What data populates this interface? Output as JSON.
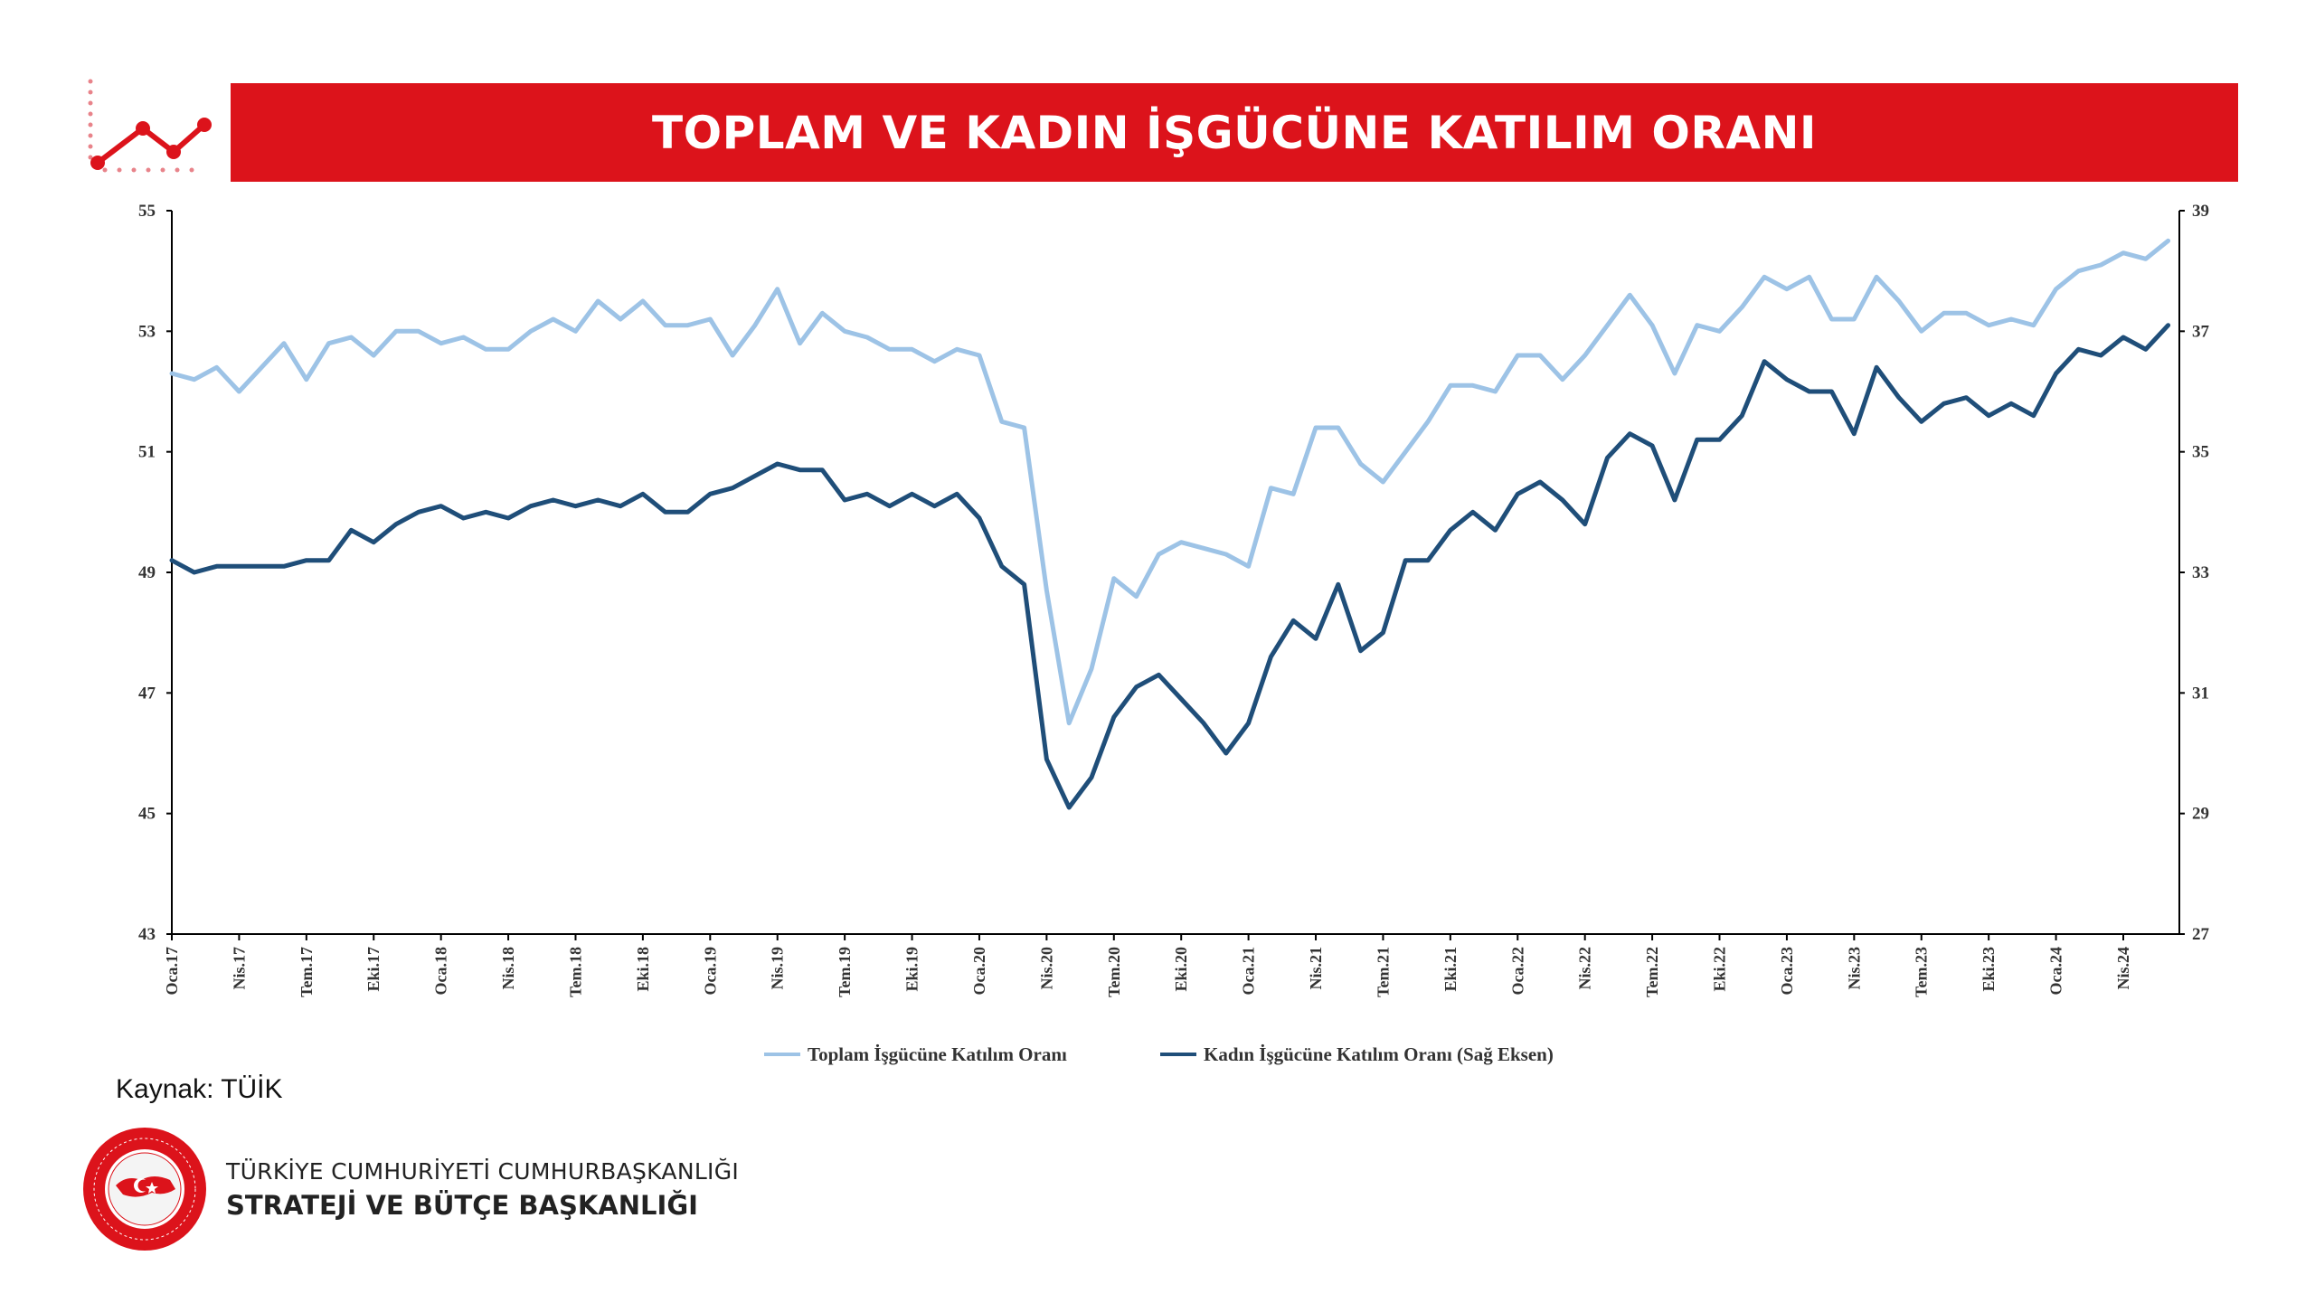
{
  "header": {
    "title": "TOPLAM VE KADIN İŞGÜCÜNE KATILIM ORANI"
  },
  "colors": {
    "accent_red": "#dc131b",
    "series_total": "#9dc3e6",
    "series_women": "#1f4e79"
  },
  "logo": {
    "icon": "trend-chart-icon"
  },
  "source": "Kaynak: TÜİK",
  "organization": {
    "line1": "TÜRKİYE CUMHURİYETİ CUMHURBAŞKANLIĞI",
    "line2": "STRATEJİ VE BÜTÇE BAŞKANLIĞI",
    "seal_text": "T.C. CUMHURBAŞKANLIĞI STRATEJİ VE BÜTÇE BAŞKANLIĞI"
  },
  "chart_data": {
    "type": "line",
    "title": "TOPLAM VE KADIN İŞGÜCÜNE KATILIM ORANI",
    "x_start": "Oca.17",
    "x_tick_labels": [
      "Oca.17",
      "Nis.17",
      "Tem.17",
      "Eki.17",
      "Oca.18",
      "Nis.18",
      "Tem.18",
      "Eki.18",
      "Oca.19",
      "Nis.19",
      "Tem.19",
      "Eki.19",
      "Oca.20",
      "Nis.20",
      "Tem.20",
      "Eki.20",
      "Oca.21",
      "Nis.21",
      "Tem.21",
      "Eki.21",
      "Oca.22",
      "Nis.22",
      "Tem.22",
      "Eki.22",
      "Oca.23",
      "Nis.23",
      "Tem.23",
      "Eki.23",
      "Oca.24",
      "Nis.24"
    ],
    "y_left": {
      "min": 43,
      "max": 55,
      "ticks": [
        43,
        45,
        47,
        49,
        51,
        53,
        55
      ]
    },
    "y_right": {
      "min": 27,
      "max": 39,
      "ticks": [
        27,
        29,
        31,
        33,
        35,
        37,
        39
      ]
    },
    "legend_position": "bottom",
    "grid": false,
    "series": [
      {
        "name": "Toplam İşgücüne Katılım Oranı",
        "axis": "left",
        "color": "#9dc3e6",
        "values": [
          52.3,
          52.2,
          52.4,
          52.0,
          52.4,
          52.8,
          52.2,
          52.8,
          52.9,
          52.6,
          53.0,
          53.0,
          52.8,
          52.9,
          52.7,
          52.7,
          53.0,
          53.2,
          53.0,
          53.5,
          53.2,
          53.5,
          53.1,
          53.1,
          53.2,
          52.6,
          53.1,
          53.7,
          52.8,
          53.3,
          53.0,
          52.9,
          52.7,
          52.7,
          52.5,
          52.7,
          52.6,
          51.5,
          51.4,
          48.7,
          46.5,
          47.4,
          48.9,
          48.6,
          49.3,
          49.5,
          49.4,
          49.3,
          49.1,
          50.4,
          50.3,
          51.4,
          51.4,
          50.8,
          50.5,
          51.0,
          51.5,
          52.1,
          52.1,
          52.0,
          52.6,
          52.6,
          52.2,
          52.6,
          53.1,
          53.6,
          53.1,
          52.3,
          53.1,
          53.0,
          53.4,
          53.9,
          53.7,
          53.9,
          53.2,
          53.2,
          53.9,
          53.5,
          53.0,
          53.3,
          53.3,
          53.1,
          53.2,
          53.1,
          53.7,
          54.0,
          54.1,
          54.3,
          54.2,
          54.5
        ]
      },
      {
        "name": "Kadın İşgücüne Katılım Oranı (Sağ Eksen)",
        "axis": "right",
        "color": "#1f4e79",
        "values": [
          33.2,
          33.0,
          33.1,
          33.1,
          33.1,
          33.1,
          33.2,
          33.2,
          33.7,
          33.5,
          33.8,
          34.0,
          34.1,
          33.9,
          34.0,
          33.9,
          34.1,
          34.2,
          34.1,
          34.2,
          34.1,
          34.3,
          34.0,
          34.0,
          34.3,
          34.4,
          34.6,
          34.8,
          34.7,
          34.7,
          34.2,
          34.3,
          34.1,
          34.3,
          34.1,
          34.3,
          33.9,
          33.1,
          32.8,
          29.9,
          29.1,
          29.6,
          30.6,
          31.1,
          31.3,
          30.9,
          30.5,
          30.0,
          30.5,
          31.6,
          32.2,
          31.9,
          32.8,
          31.7,
          32.0,
          33.2,
          33.2,
          33.7,
          34.0,
          33.7,
          34.3,
          34.5,
          34.2,
          33.8,
          34.9,
          35.3,
          35.1,
          34.2,
          35.2,
          35.2,
          35.6,
          36.5,
          36.2,
          36.0,
          36.0,
          35.3,
          36.4,
          35.9,
          35.5,
          35.8,
          35.9,
          35.6,
          35.8,
          35.6,
          36.3,
          36.7,
          36.6,
          36.9,
          36.7,
          37.1
        ]
      }
    ]
  }
}
